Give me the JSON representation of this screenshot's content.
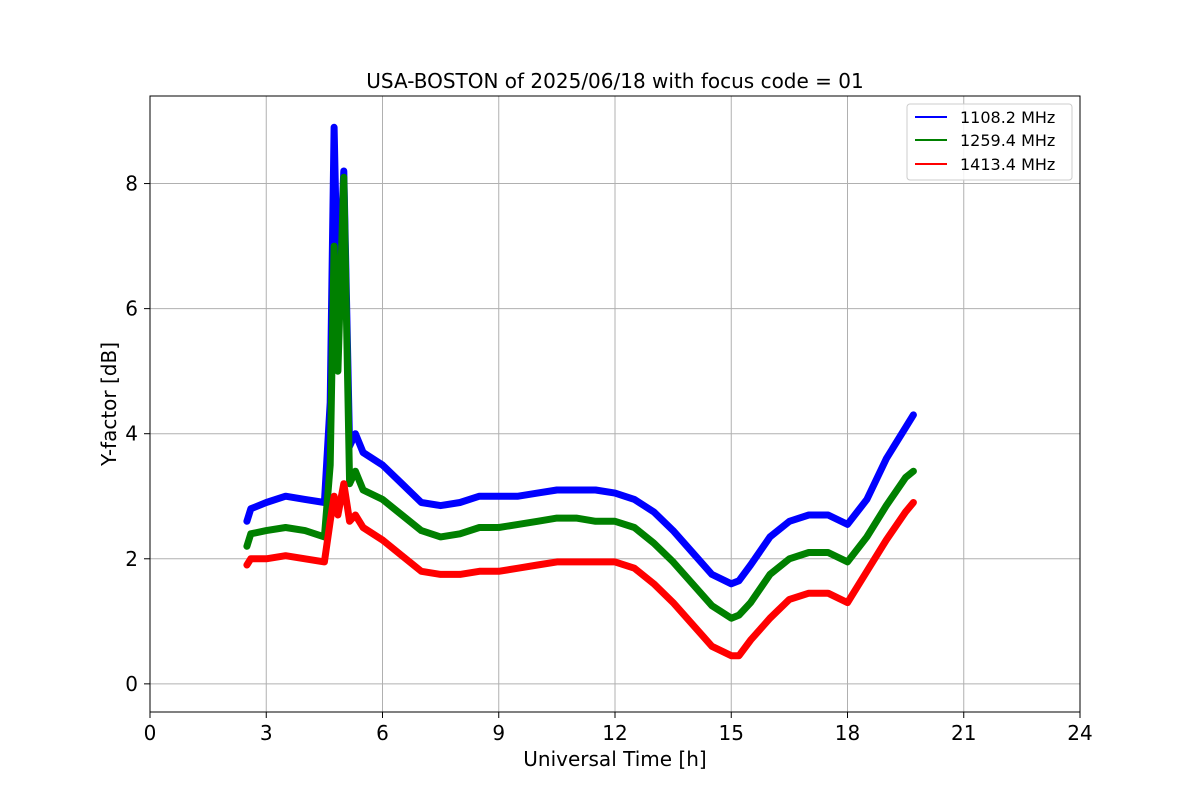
{
  "chart_data": {
    "type": "line",
    "title": "USA-BOSTON of 2025/06/18 with focus code = 01",
    "xlabel": "Universal Time [h]",
    "ylabel": "Y-factor [dB]",
    "xlim": [
      0,
      24
    ],
    "ylim": [
      -0.45,
      9.4
    ],
    "xticks": [
      0,
      3,
      6,
      9,
      12,
      15,
      18,
      21,
      24
    ],
    "xtick_labels": [
      "0",
      "3",
      "6",
      "9",
      "12",
      "15",
      "18",
      "21",
      "24"
    ],
    "yticks": [
      0,
      2,
      4,
      6,
      8
    ],
    "ytick_labels": [
      "0",
      "2",
      "4",
      "6",
      "8"
    ],
    "grid": true,
    "legend_position": "top-right",
    "series": [
      {
        "name": "1108.2 MHz",
        "color": "#0000ff",
        "x": [
          2.5,
          2.6,
          3.0,
          3.5,
          4.0,
          4.5,
          4.65,
          4.75,
          4.85,
          5.0,
          5.15,
          5.3,
          5.5,
          6.0,
          6.5,
          7.0,
          7.5,
          8.0,
          8.5,
          9.0,
          9.5,
          10.0,
          10.5,
          11.0,
          11.5,
          12.0,
          12.5,
          13.0,
          13.5,
          14.0,
          14.5,
          15.0,
          15.2,
          15.5,
          16.0,
          16.5,
          17.0,
          17.5,
          18.0,
          18.5,
          19.0,
          19.5,
          19.7
        ],
        "y": [
          2.6,
          2.8,
          2.9,
          3.0,
          2.95,
          2.9,
          4.5,
          8.9,
          6.0,
          8.2,
          3.8,
          4.0,
          3.7,
          3.5,
          3.2,
          2.9,
          2.85,
          2.9,
          3.0,
          3.0,
          3.0,
          3.05,
          3.1,
          3.1,
          3.1,
          3.05,
          2.95,
          2.75,
          2.45,
          2.1,
          1.75,
          1.6,
          1.65,
          1.9,
          2.35,
          2.6,
          2.7,
          2.7,
          2.55,
          2.95,
          3.6,
          4.1,
          4.3
        ]
      },
      {
        "name": "1259.4 MHz",
        "color": "#008000",
        "x": [
          2.5,
          2.6,
          3.0,
          3.5,
          4.0,
          4.5,
          4.65,
          4.75,
          4.85,
          5.0,
          5.15,
          5.3,
          5.5,
          6.0,
          6.5,
          7.0,
          7.5,
          8.0,
          8.5,
          9.0,
          9.5,
          10.0,
          10.5,
          11.0,
          11.5,
          12.0,
          12.5,
          13.0,
          13.5,
          14.0,
          14.5,
          15.0,
          15.2,
          15.5,
          16.0,
          16.5,
          17.0,
          17.5,
          18.0,
          18.5,
          19.0,
          19.5,
          19.7
        ],
        "y": [
          2.2,
          2.4,
          2.45,
          2.5,
          2.45,
          2.35,
          3.5,
          7.0,
          5.0,
          8.1,
          3.2,
          3.4,
          3.1,
          2.95,
          2.7,
          2.45,
          2.35,
          2.4,
          2.5,
          2.5,
          2.55,
          2.6,
          2.65,
          2.65,
          2.6,
          2.6,
          2.5,
          2.25,
          1.95,
          1.6,
          1.25,
          1.05,
          1.1,
          1.3,
          1.75,
          2.0,
          2.1,
          2.1,
          1.95,
          2.35,
          2.85,
          3.3,
          3.4
        ]
      },
      {
        "name": "1413.4 MHz",
        "color": "#ff0000",
        "x": [
          2.5,
          2.6,
          3.0,
          3.5,
          4.0,
          4.5,
          4.65,
          4.75,
          4.85,
          5.0,
          5.15,
          5.3,
          5.5,
          6.0,
          6.5,
          7.0,
          7.5,
          8.0,
          8.5,
          9.0,
          9.5,
          10.0,
          10.5,
          11.0,
          11.5,
          12.0,
          12.5,
          13.0,
          13.5,
          14.0,
          14.5,
          15.0,
          15.2,
          15.5,
          16.0,
          16.5,
          17.0,
          17.5,
          18.0,
          18.5,
          19.0,
          19.5,
          19.7
        ],
        "y": [
          1.9,
          2.0,
          2.0,
          2.05,
          2.0,
          1.95,
          2.6,
          3.0,
          2.7,
          3.2,
          2.6,
          2.7,
          2.5,
          2.3,
          2.05,
          1.8,
          1.75,
          1.75,
          1.8,
          1.8,
          1.85,
          1.9,
          1.95,
          1.95,
          1.95,
          1.95,
          1.85,
          1.6,
          1.3,
          0.95,
          0.6,
          0.45,
          0.45,
          0.7,
          1.05,
          1.35,
          1.45,
          1.45,
          1.3,
          1.8,
          2.3,
          2.75,
          2.9
        ]
      }
    ]
  }
}
